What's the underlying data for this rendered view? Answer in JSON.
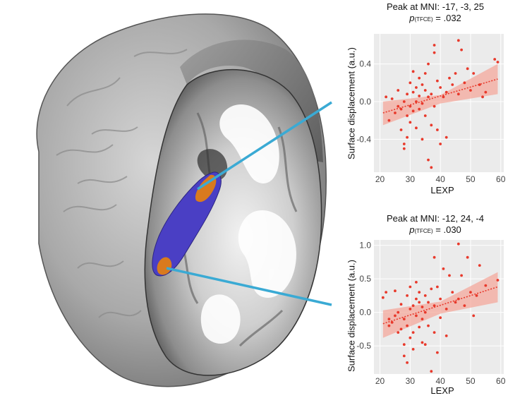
{
  "colors": {
    "panel_bg": "#ebebeb",
    "grid": "#ffffff",
    "points": "#e8392b",
    "fit_line": "#e8392b",
    "ci_band": "#f4a89c",
    "connector": "#3aaad4",
    "brain_gray": "#b8b8b8",
    "structure_blue": "#4a3fc4",
    "structure_orange": "#d97a1e"
  },
  "chart_data": [
    {
      "type": "scatter",
      "title": "Peak at MNI: -17, -3, 25",
      "stat_label_p": "p",
      "stat_label_sub": "(TFCE)",
      "stat_value": " = .032",
      "xlabel": "LEXP",
      "ylabel": "Surface displacement (a.u.)",
      "xlim": [
        18,
        61
      ],
      "ylim": [
        -0.75,
        0.72
      ],
      "xticks": [
        20,
        30,
        40,
        50,
        60
      ],
      "yticks": [
        0.4,
        0.0,
        -0.4
      ],
      "ytick_labels": [
        "0.4",
        "0.0",
        "-0.4"
      ],
      "grid": true,
      "fit": {
        "x": [
          21,
          59
        ],
        "y": [
          -0.12,
          0.24
        ],
        "ci_low_start": -0.25,
        "ci_high_start": 0.0,
        "ci_low_end": 0.08,
        "ci_high_end": 0.4,
        "ci_low_mid": -0.02,
        "ci_high_mid": 0.07
      },
      "points": [
        {
          "x": 22,
          "y": 0.05
        },
        {
          "x": 23,
          "y": -0.2
        },
        {
          "x": 24,
          "y": 0.03
        },
        {
          "x": 25,
          "y": -0.12
        },
        {
          "x": 26,
          "y": 0.12
        },
        {
          "x": 26,
          "y": -0.05
        },
        {
          "x": 27,
          "y": -0.08
        },
        {
          "x": 27,
          "y": -0.3
        },
        {
          "x": 28,
          "y": -0.45
        },
        {
          "x": 28,
          "y": -0.5
        },
        {
          "x": 28,
          "y": 0.0
        },
        {
          "x": 29,
          "y": 0.08
        },
        {
          "x": 29,
          "y": -0.15
        },
        {
          "x": 29,
          "y": -0.38
        },
        {
          "x": 30,
          "y": 0.2
        },
        {
          "x": 30,
          "y": -0.05
        },
        {
          "x": 30,
          "y": -0.22
        },
        {
          "x": 31,
          "y": 0.1
        },
        {
          "x": 31,
          "y": -0.1
        },
        {
          "x": 31,
          "y": 0.32
        },
        {
          "x": 32,
          "y": 0.0
        },
        {
          "x": 32,
          "y": -0.28
        },
        {
          "x": 32,
          "y": 0.15
        },
        {
          "x": 33,
          "y": 0.06
        },
        {
          "x": 33,
          "y": -0.08
        },
        {
          "x": 33,
          "y": 0.25
        },
        {
          "x": 34,
          "y": 0.18
        },
        {
          "x": 34,
          "y": -0.02
        },
        {
          "x": 34,
          "y": -0.4
        },
        {
          "x": 35,
          "y": 0.12
        },
        {
          "x": 35,
          "y": -0.15
        },
        {
          "x": 35,
          "y": 0.3
        },
        {
          "x": 36,
          "y": -0.62
        },
        {
          "x": 36,
          "y": 0.4
        },
        {
          "x": 36,
          "y": 0.05
        },
        {
          "x": 37,
          "y": -0.7
        },
        {
          "x": 37,
          "y": -0.25
        },
        {
          "x": 37,
          "y": 0.08
        },
        {
          "x": 38,
          "y": 0.6
        },
        {
          "x": 38,
          "y": 0.52
        },
        {
          "x": 38,
          "y": -0.05
        },
        {
          "x": 39,
          "y": 0.22
        },
        {
          "x": 39,
          "y": -0.3
        },
        {
          "x": 40,
          "y": 0.15
        },
        {
          "x": 40,
          "y": -0.45
        },
        {
          "x": 41,
          "y": 0.05
        },
        {
          "x": 42,
          "y": 0.1
        },
        {
          "x": 42,
          "y": -0.38
        },
        {
          "x": 43,
          "y": 0.25
        },
        {
          "x": 44,
          "y": 0.18
        },
        {
          "x": 45,
          "y": 0.3
        },
        {
          "x": 46,
          "y": 0.65
        },
        {
          "x": 46,
          "y": 0.08
        },
        {
          "x": 47,
          "y": 0.55
        },
        {
          "x": 48,
          "y": 0.2
        },
        {
          "x": 49,
          "y": 0.35
        },
        {
          "x": 50,
          "y": 0.12
        },
        {
          "x": 51,
          "y": 0.3
        },
        {
          "x": 53,
          "y": 0.18
        },
        {
          "x": 54,
          "y": 0.05
        },
        {
          "x": 55,
          "y": 0.1
        },
        {
          "x": 58,
          "y": 0.45
        },
        {
          "x": 59,
          "y": 0.42
        }
      ]
    },
    {
      "type": "scatter",
      "title": "Peak at MNI: -12, 24, -4",
      "stat_label_p": "p",
      "stat_label_sub": "(TFCE)",
      "stat_value": " = .030",
      "xlabel": "LEXP",
      "ylabel": "Surface displacement (a.u.)",
      "xlim": [
        18,
        61
      ],
      "ylim": [
        -0.92,
        1.08
      ],
      "xticks": [
        20,
        30,
        40,
        50,
        60
      ],
      "yticks": [
        1.0,
        0.5,
        0.0,
        -0.5
      ],
      "ytick_labels": [
        "1.0",
        "0.5",
        "0.0",
        "-0.5"
      ],
      "grid": true,
      "fit": {
        "x": [
          21,
          59
        ],
        "y": [
          -0.17,
          0.38
        ],
        "ci_low_start": -0.38,
        "ci_high_start": 0.03,
        "ci_low_end": 0.15,
        "ci_high_end": 0.6,
        "ci_low_mid": -0.02,
        "ci_high_mid": 0.16
      },
      "points": [
        {
          "x": 21,
          "y": 0.22
        },
        {
          "x": 22,
          "y": 0.3
        },
        {
          "x": 23,
          "y": -0.1
        },
        {
          "x": 23,
          "y": -0.2
        },
        {
          "x": 24,
          "y": -0.15
        },
        {
          "x": 25,
          "y": -0.05
        },
        {
          "x": 25,
          "y": 0.32
        },
        {
          "x": 26,
          "y": -0.3
        },
        {
          "x": 26,
          "y": 0.0
        },
        {
          "x": 27,
          "y": -0.25
        },
        {
          "x": 27,
          "y": 0.12
        },
        {
          "x": 28,
          "y": -0.48
        },
        {
          "x": 28,
          "y": -0.1
        },
        {
          "x": 28,
          "y": -0.65
        },
        {
          "x": 29,
          "y": 0.25
        },
        {
          "x": 29,
          "y": -0.2
        },
        {
          "x": 29,
          "y": -0.75
        },
        {
          "x": 30,
          "y": 0.05
        },
        {
          "x": 30,
          "y": -0.38
        },
        {
          "x": 30,
          "y": 0.38
        },
        {
          "x": 31,
          "y": 0.1
        },
        {
          "x": 31,
          "y": -0.3
        },
        {
          "x": 31,
          "y": -0.55
        },
        {
          "x": 32,
          "y": 0.45
        },
        {
          "x": 32,
          "y": -0.05
        },
        {
          "x": 32,
          "y": 0.2
        },
        {
          "x": 33,
          "y": 0.15
        },
        {
          "x": 33,
          "y": -0.22
        },
        {
          "x": 33,
          "y": 0.3
        },
        {
          "x": 34,
          "y": -0.1
        },
        {
          "x": 34,
          "y": -0.45
        },
        {
          "x": 34,
          "y": 0.08
        },
        {
          "x": 35,
          "y": -0.48
        },
        {
          "x": 35,
          "y": 0.0
        },
        {
          "x": 35,
          "y": 0.25
        },
        {
          "x": 36,
          "y": 0.15
        },
        {
          "x": 36,
          "y": -0.2
        },
        {
          "x": 37,
          "y": -0.88
        },
        {
          "x": 37,
          "y": 0.35
        },
        {
          "x": 38,
          "y": 0.1
        },
        {
          "x": 38,
          "y": 0.82
        },
        {
          "x": 38,
          "y": -0.3
        },
        {
          "x": 39,
          "y": 0.38
        },
        {
          "x": 39,
          "y": -0.6
        },
        {
          "x": 40,
          "y": 0.2
        },
        {
          "x": 40,
          "y": -0.08
        },
        {
          "x": 41,
          "y": 0.65
        },
        {
          "x": 42,
          "y": 0.05
        },
        {
          "x": 42,
          "y": -0.35
        },
        {
          "x": 43,
          "y": 0.55
        },
        {
          "x": 44,
          "y": 0.3
        },
        {
          "x": 45,
          "y": 0.15
        },
        {
          "x": 46,
          "y": 1.02
        },
        {
          "x": 46,
          "y": 0.2
        },
        {
          "x": 47,
          "y": 0.55
        },
        {
          "x": 48,
          "y": 0.1
        },
        {
          "x": 49,
          "y": 0.82
        },
        {
          "x": 50,
          "y": 0.3
        },
        {
          "x": 51,
          "y": -0.05
        },
        {
          "x": 52,
          "y": 0.25
        },
        {
          "x": 53,
          "y": 0.7
        },
        {
          "x": 55,
          "y": 0.4
        },
        {
          "x": 59,
          "y": 0.48
        }
      ]
    }
  ]
}
